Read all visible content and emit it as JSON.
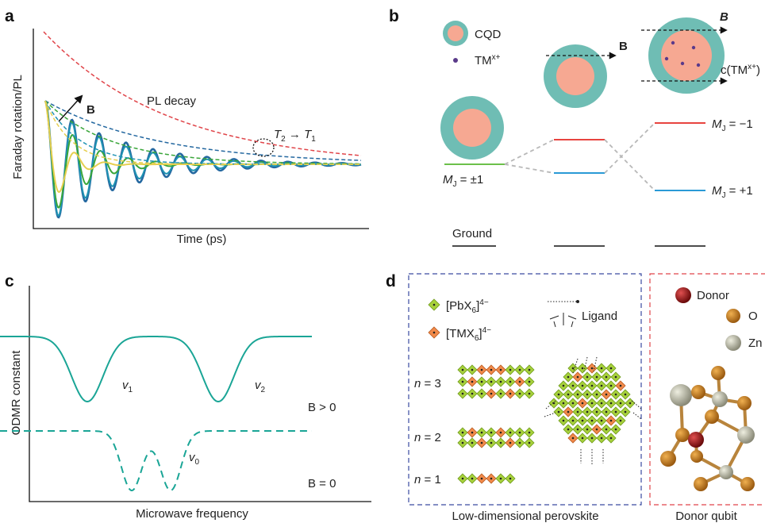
{
  "panels": {
    "a": {
      "label": "a",
      "y_axis_label": "Faraday rotation/PL",
      "x_axis_label": "Time (ps)",
      "pl_decay": "PL decay",
      "field_arrow": "B",
      "relaxation": {
        "t2": "T",
        "t2_sub": "2",
        "arrow": " → ",
        "t1": "T",
        "t1_sub": "1"
      }
    },
    "b": {
      "label": "b",
      "legend": {
        "cqd": "CQD",
        "tm": "TM",
        "tm_sup": "x+"
      },
      "field_middle": "B",
      "field_right": "B",
      "concentration": {
        "prefix": "c(TM",
        "sup": "x+",
        "suffix": ")"
      },
      "levels": {
        "minus": {
          "symbol": "M",
          "sub": "J",
          "text": " = −1"
        },
        "degenerate": {
          "symbol": "M",
          "sub": "J",
          "text": " = ±1"
        },
        "plus": {
          "symbol": "M",
          "sub": "J",
          "text": " = +1"
        }
      },
      "ground": "Ground"
    },
    "c": {
      "label": "c",
      "y_axis_label": "ODMR constant",
      "x_axis_label": "Microwave frequency",
      "nu1": {
        "symbol": "v",
        "sub": "1"
      },
      "nu2": {
        "symbol": "v",
        "sub": "2"
      },
      "nu0": {
        "symbol": "v",
        "sub": "0"
      },
      "field_on": "B > 0",
      "field_off": "B = 0"
    },
    "d": {
      "label": "d",
      "legend": {
        "pb": {
          "text": "[PbX",
          "sub": "6",
          "close": "]",
          "sup": "4−"
        },
        "tm": {
          "text": "[TMX",
          "sub": "6",
          "close": "]",
          "sup": "4−"
        },
        "ligand": "Ligand"
      },
      "layers": {
        "n3": {
          "symbol": "n",
          "text": " = 3"
        },
        "n2": {
          "symbol": "n",
          "text": " = 2"
        },
        "n1": {
          "symbol": "n",
          "text": " = 1"
        }
      },
      "perovskite_caption": "Low-dimensional perovskite",
      "donor_legend": {
        "donor": "Donor",
        "oxygen": "O",
        "zinc": "Zn"
      },
      "donor_caption": "Donor qubit"
    }
  }
}
